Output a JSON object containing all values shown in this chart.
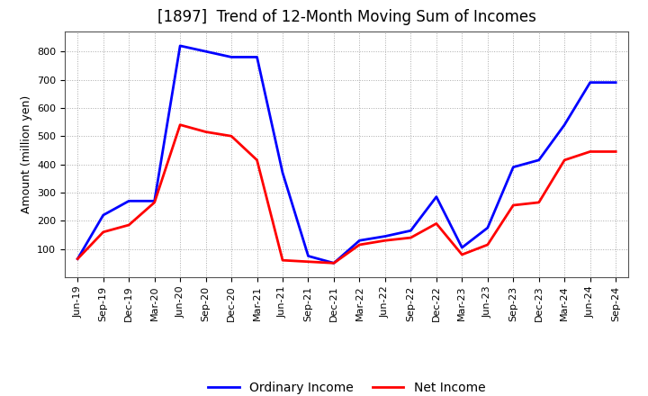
{
  "title": "[1897]  Trend of 12-Month Moving Sum of Incomes",
  "ylabel": "Amount (million yen)",
  "background_color": "#ffffff",
  "grid_color": "#aaaaaa",
  "ordinary_income_color": "#0000ff",
  "net_income_color": "#ff0000",
  "line_width": 2.0,
  "labels": [
    "Jun-19",
    "Sep-19",
    "Dec-19",
    "Mar-20",
    "Jun-20",
    "Sep-20",
    "Dec-20",
    "Mar-21",
    "Jun-21",
    "Sep-21",
    "Dec-21",
    "Mar-22",
    "Jun-22",
    "Sep-22",
    "Dec-22",
    "Mar-23",
    "Jun-23",
    "Sep-23",
    "Dec-23",
    "Mar-24",
    "Jun-24",
    "Sep-24"
  ],
  "ordinary_income": [
    65,
    220,
    270,
    270,
    820,
    800,
    780,
    780,
    370,
    75,
    50,
    130,
    145,
    165,
    285,
    105,
    175,
    390,
    415,
    540,
    690,
    690
  ],
  "net_income": [
    65,
    160,
    185,
    265,
    540,
    515,
    500,
    415,
    60,
    55,
    50,
    115,
    130,
    140,
    190,
    80,
    115,
    255,
    265,
    415,
    445,
    445
  ],
  "ylim": [
    0,
    870
  ],
  "yticks": [
    100,
    200,
    300,
    400,
    500,
    600,
    700,
    800
  ],
  "legend_labels": [
    "Ordinary Income",
    "Net Income"
  ],
  "title_fontsize": 12,
  "axis_fontsize": 9,
  "tick_fontsize": 8,
  "legend_fontsize": 10
}
